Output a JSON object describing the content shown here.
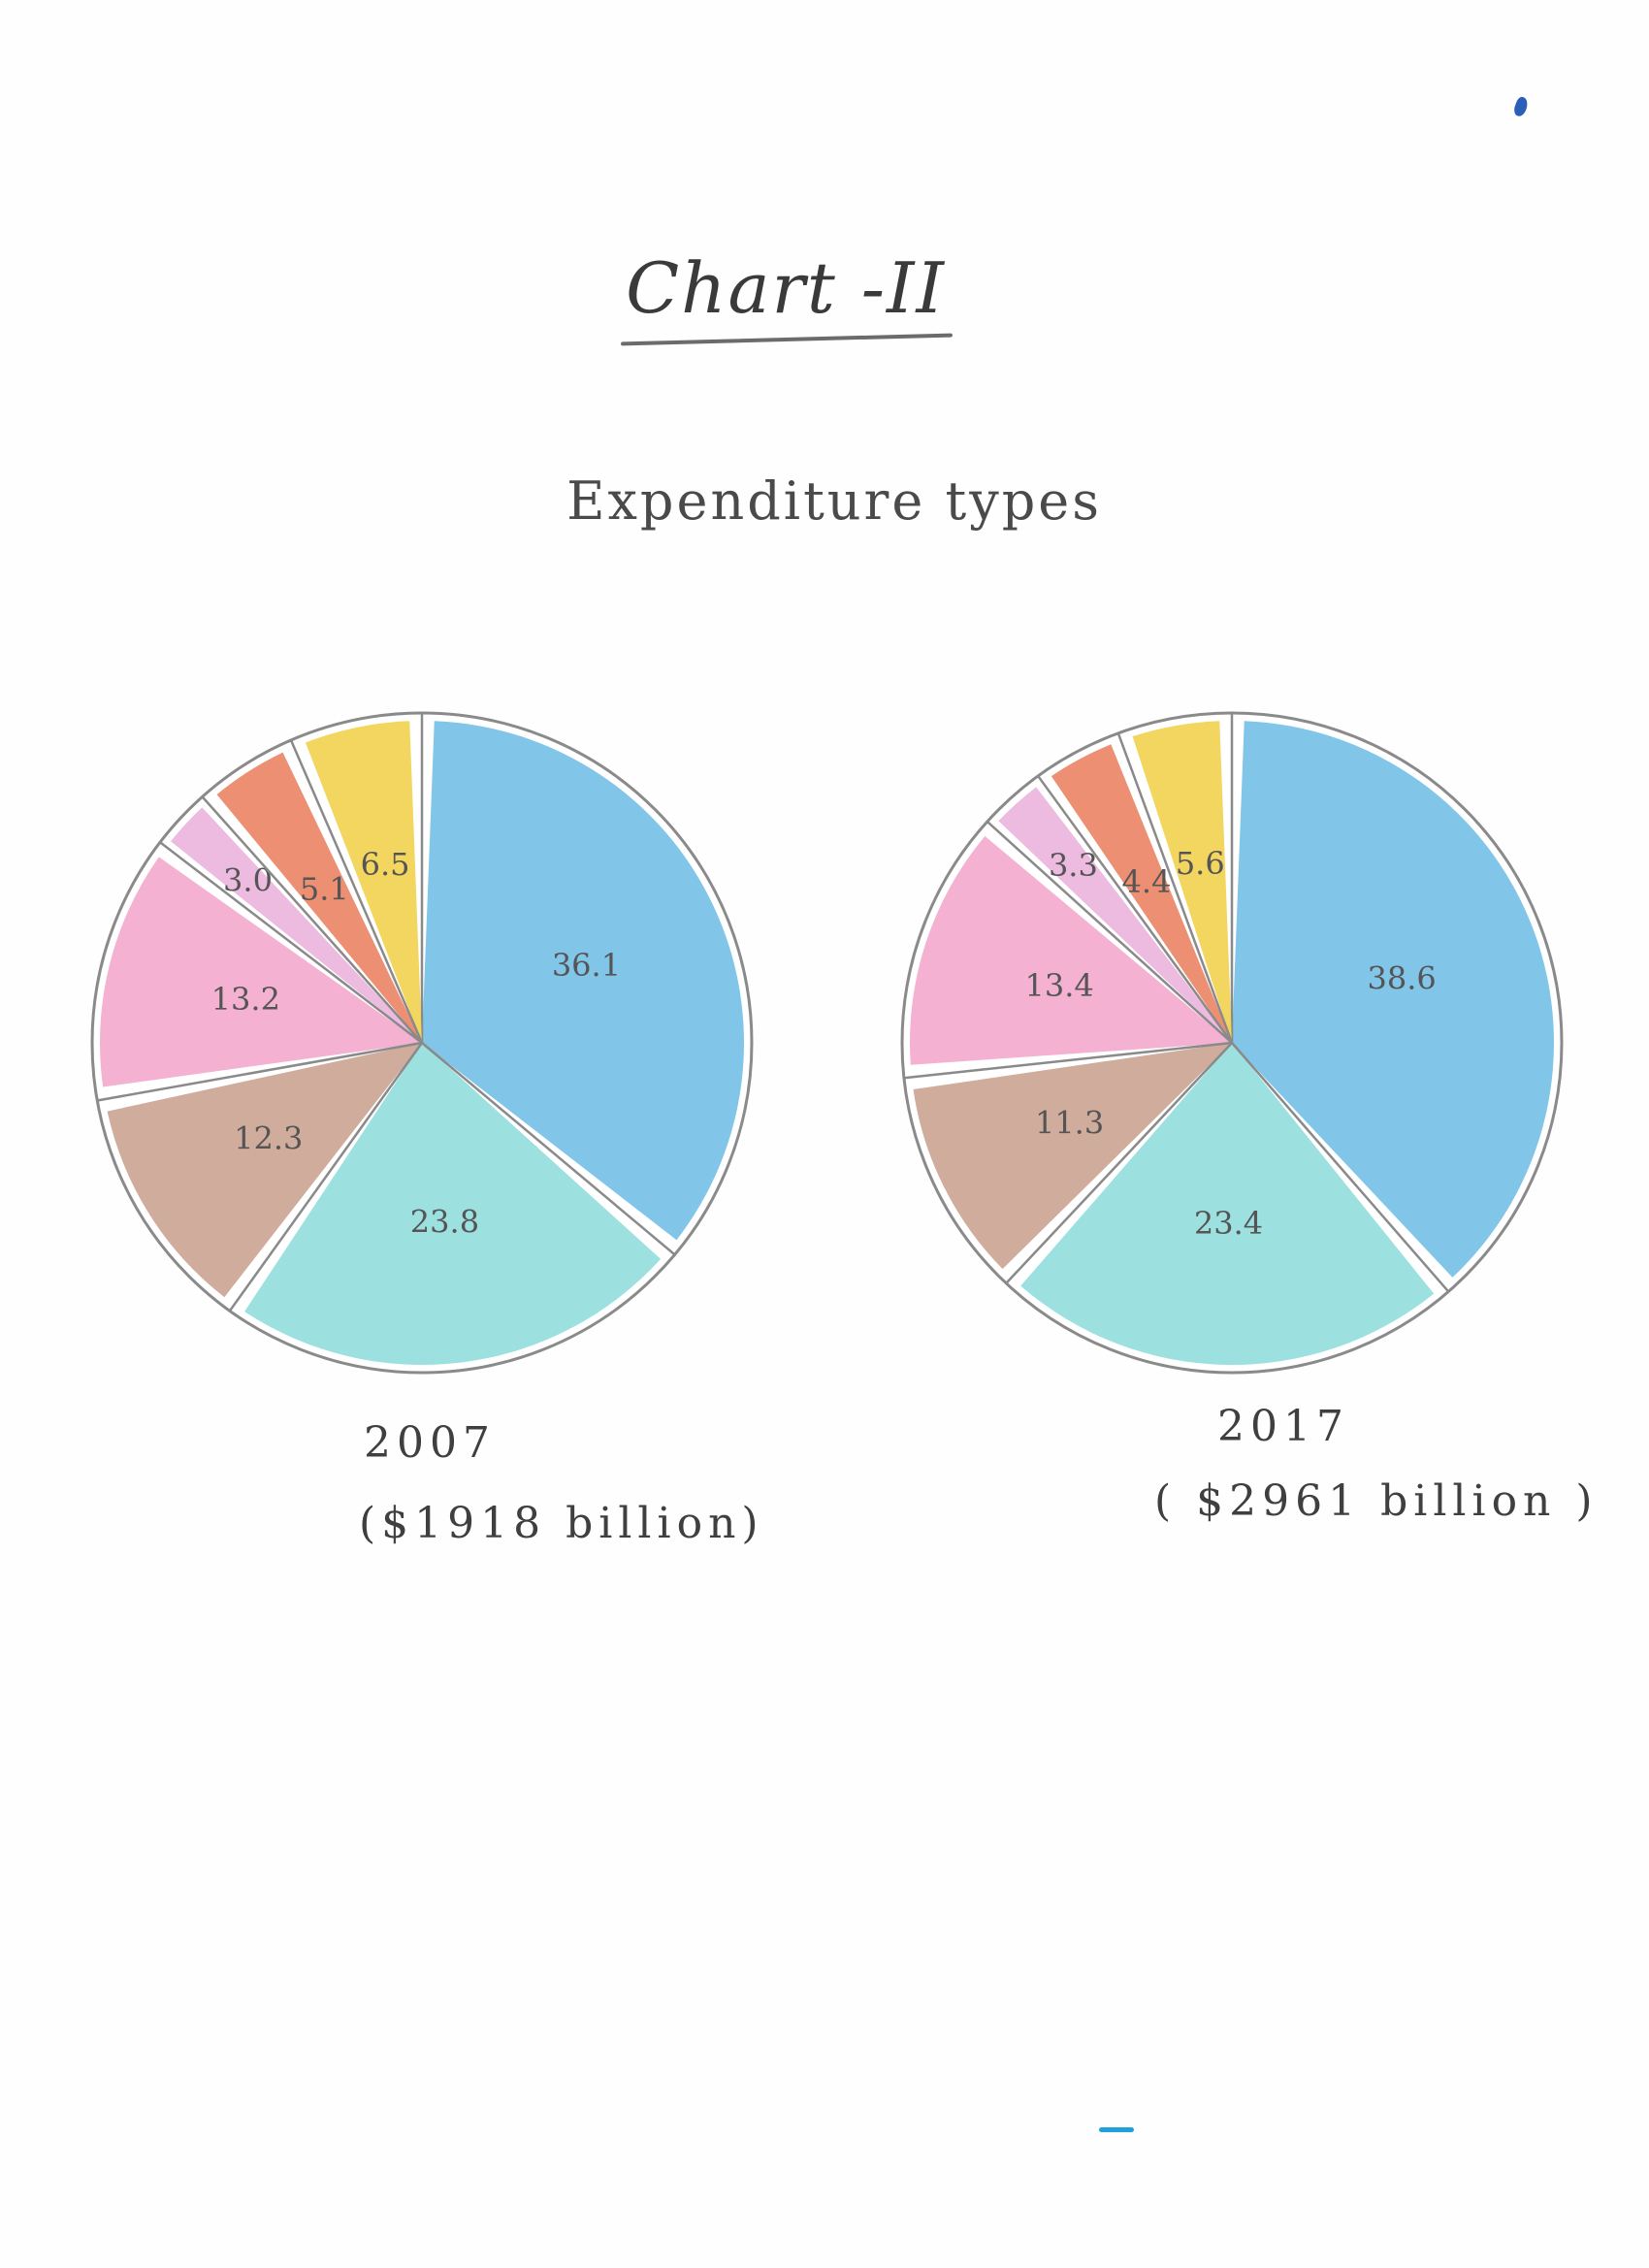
{
  "header": {
    "title": "Chart -II",
    "subtitle": "Expenditure types"
  },
  "chart_data": [
    {
      "type": "pie",
      "year": "2007",
      "total": "($1918 billion)",
      "slices": [
        {
          "value": 36.1,
          "label": "36.1",
          "color": "#6fbde6"
        },
        {
          "value": 23.8,
          "label": "23.8",
          "color": "#8fdcdc"
        },
        {
          "value": 12.3,
          "label": "12.3",
          "color": "#c9a08f"
        },
        {
          "value": 13.2,
          "label": "13.2",
          "color": "#f2a6cc"
        },
        {
          "value": 3.0,
          "label": "3.0",
          "color": "#eab0dc"
        },
        {
          "value": 5.1,
          "label": "5.1",
          "color": "#e98060"
        },
        {
          "value": 6.5,
          "label": "6.5",
          "color": "#f0d049"
        }
      ]
    },
    {
      "type": "pie",
      "year": "2017",
      "total": "( $2961 billion )",
      "slices": [
        {
          "value": 38.6,
          "label": "38.6",
          "color": "#6fbde6"
        },
        {
          "value": 23.4,
          "label": "23.4",
          "color": "#8fdcdc"
        },
        {
          "value": 11.3,
          "label": "11.3",
          "color": "#c9a08f"
        },
        {
          "value": 13.4,
          "label": "13.4",
          "color": "#f2a6cc"
        },
        {
          "value": 3.3,
          "label": "3.3",
          "color": "#eab0dc"
        },
        {
          "value": 4.4,
          "label": "4.4",
          "color": "#e98060"
        },
        {
          "value": 5.6,
          "label": "5.6",
          "color": "#f0d049"
        }
      ]
    }
  ],
  "colors": {
    "outline": "#8a8a8a",
    "gap_fill": "#ffffff",
    "label_text": "#555555"
  }
}
